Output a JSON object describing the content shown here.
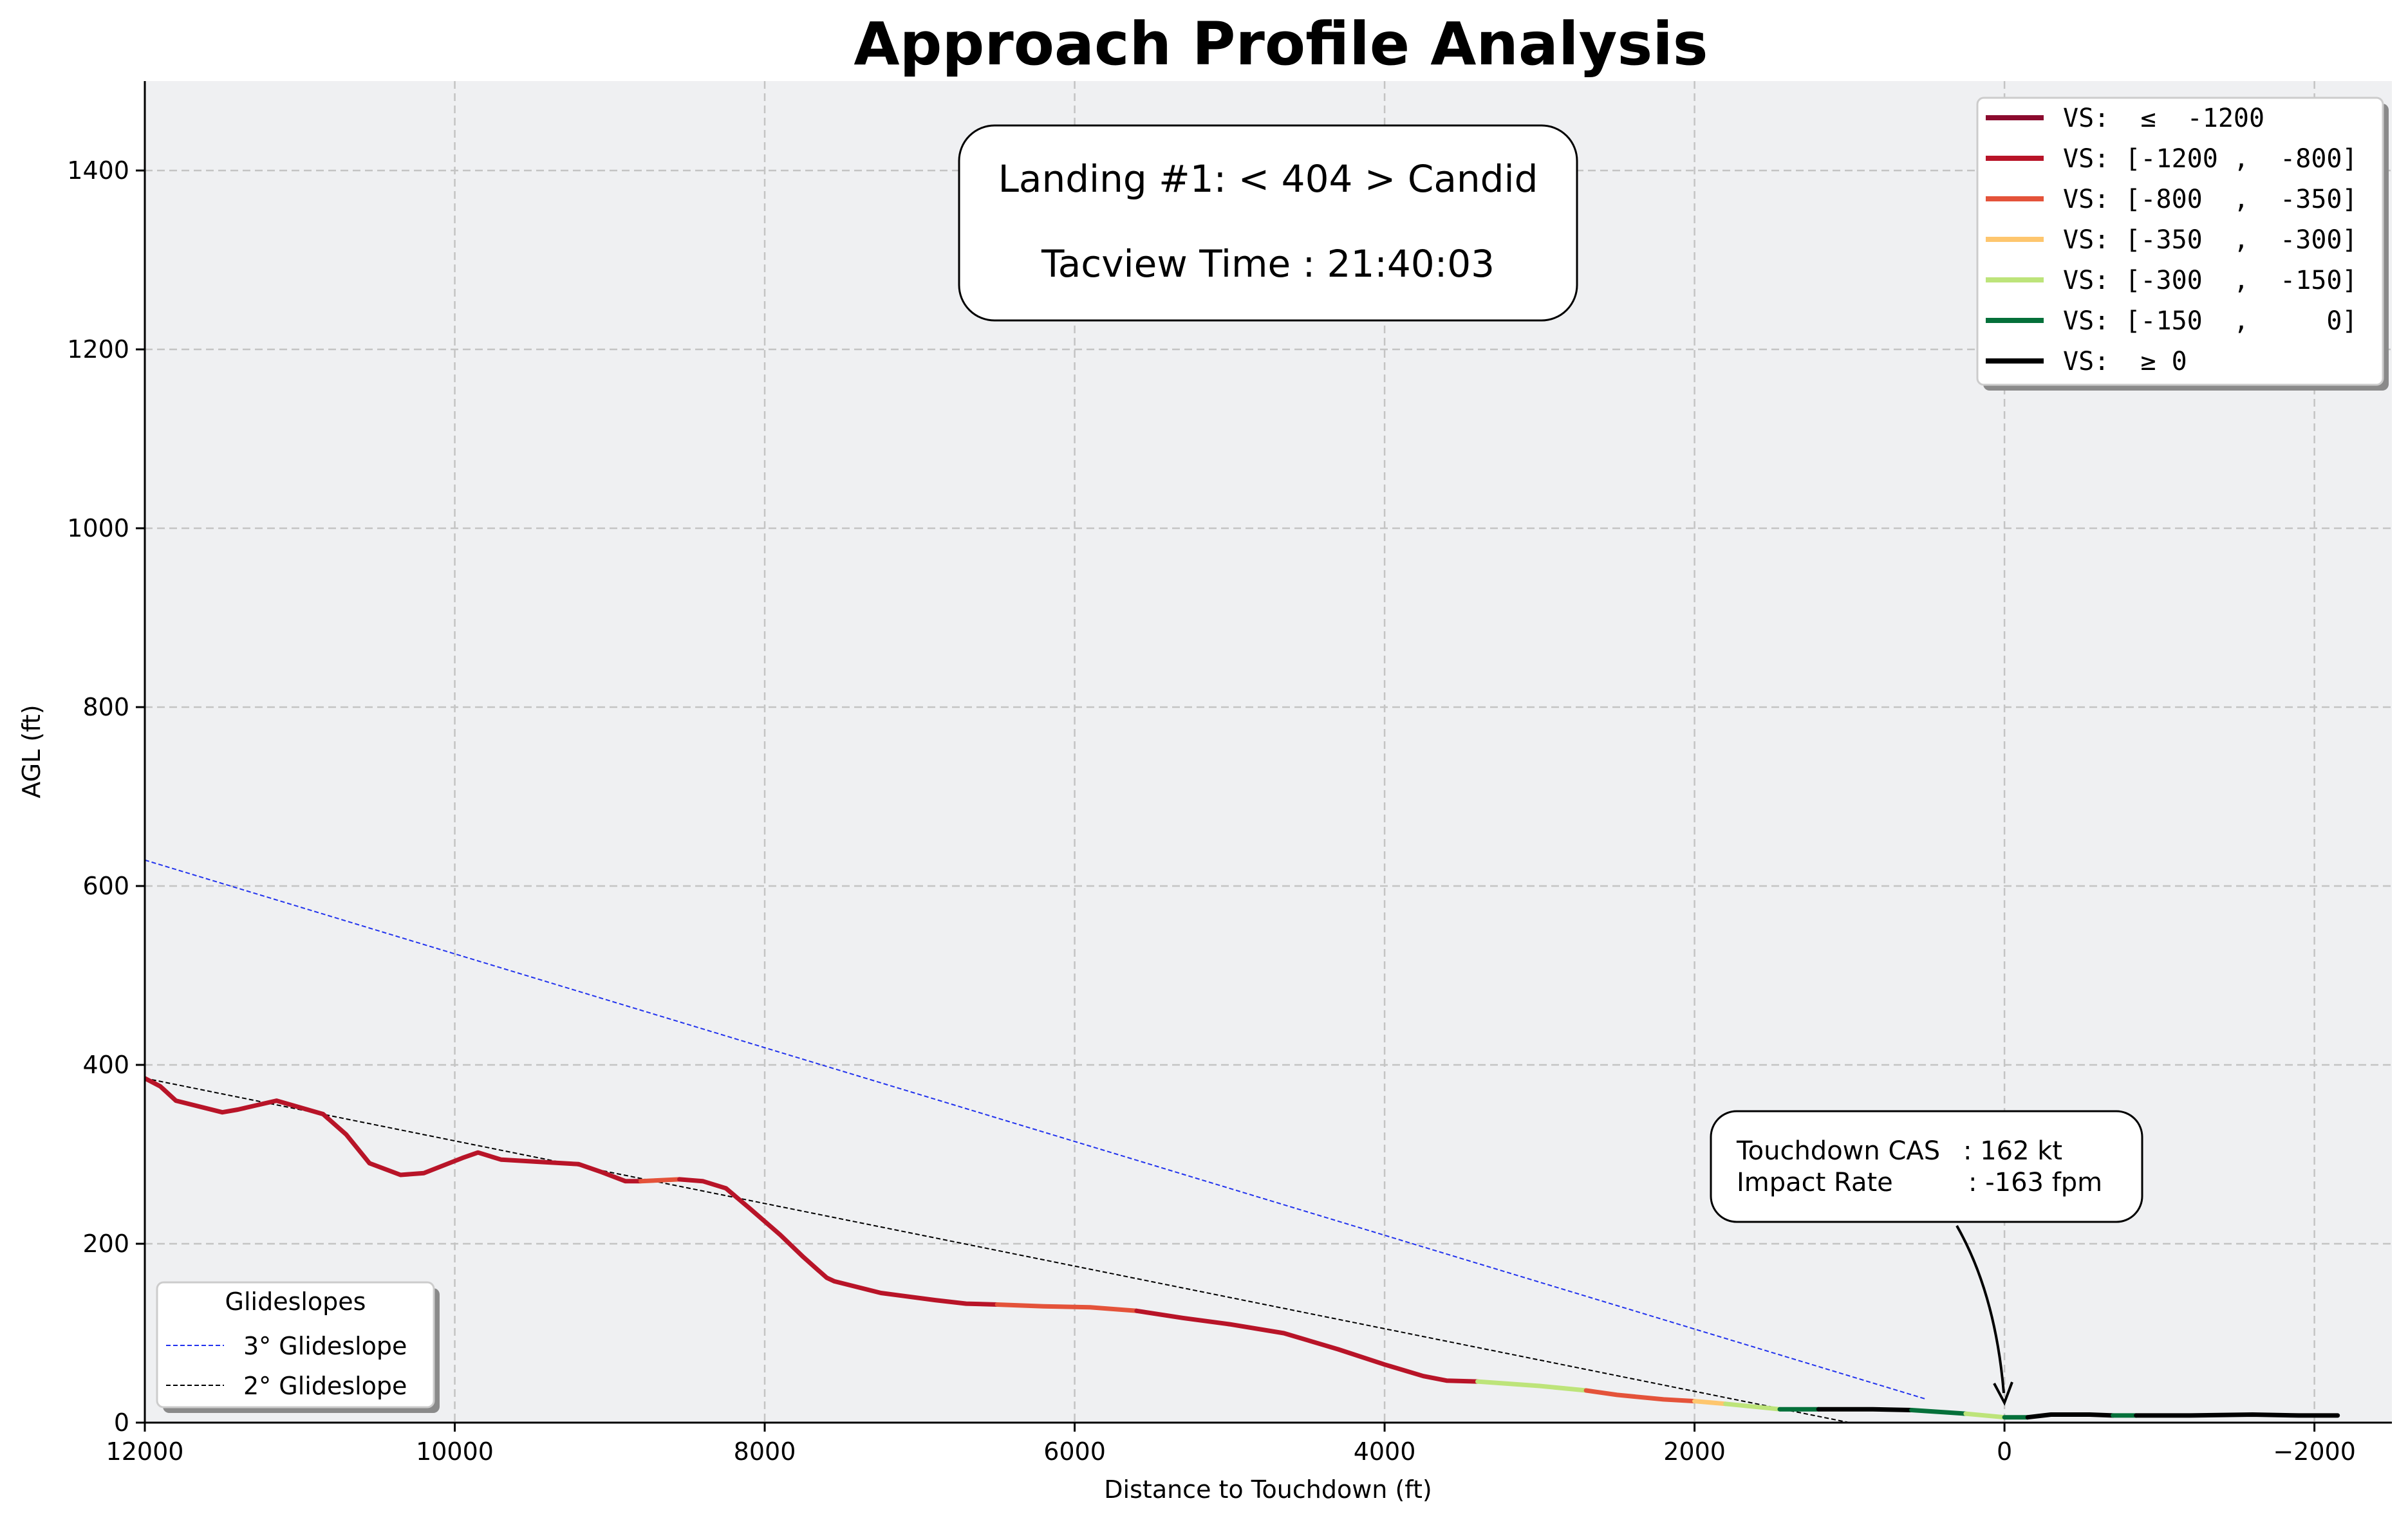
{
  "chart_data": {
    "type": "line",
    "title": "Approach Profile Analysis",
    "xlabel": "Distance to Touchdown (ft)",
    "ylabel": "AGL (ft)",
    "xlim": [
      12000,
      -2500
    ],
    "ylim": [
      0,
      1500
    ],
    "x_axis_inverted": true,
    "x_ticks": [
      12000,
      10000,
      8000,
      6000,
      4000,
      2000,
      0,
      -2000
    ],
    "x_tick_labels": [
      "12000",
      "10000",
      "8000",
      "6000",
      "4000",
      "2000",
      "0",
      "−2000"
    ],
    "y_ticks": [
      0,
      200,
      400,
      600,
      800,
      1000,
      1200,
      1400
    ],
    "y_tick_labels": [
      "0",
      "200",
      "400",
      "600",
      "800",
      "1000",
      "1200",
      "1400"
    ],
    "grid": true,
    "info_box": {
      "line1": "Landing #1: < 404 > Candid",
      "line2": "Tacview Time : 21:40:03"
    },
    "vs_legend": {
      "placement": "top-right",
      "entries": [
        {
          "label": "VS:  ≤  -1200",
          "color": "#8b0a2e"
        },
        {
          "label": "VS: [-1200 ,  -800]",
          "color": "#b81428"
        },
        {
          "label": "VS: [-800  ,  -350]",
          "color": "#e4533a"
        },
        {
          "label": "VS: [-350  ,  -300]",
          "color": "#fec66e"
        },
        {
          "label": "VS: [-300  ,  -150]",
          "color": "#bde47a"
        },
        {
          "label": "VS: [-150  ,     0]",
          "color": "#05703a"
        },
        {
          "label": "VS:  ≥ 0",
          "color": "#000000"
        }
      ]
    },
    "glideslope_legend": {
      "placement": "bottom-left",
      "title": "Glideslopes",
      "entries": [
        {
          "label": "3° Glideslope",
          "color": "#2233ee"
        },
        {
          "label": "2° Glideslope",
          "color": "#000000"
        }
      ]
    },
    "glideslopes": [
      {
        "name": "3° Glideslope",
        "color": "#2233ee",
        "points": [
          [
            12000,
            629
          ],
          [
            500,
            26
          ]
        ]
      },
      {
        "name": "2° Glideslope",
        "color": "#000000",
        "points": [
          [
            12000,
            385
          ],
          [
            1000,
            0
          ]
        ]
      }
    ],
    "annotation": {
      "line1_label": "Touchdown CAS",
      "line1_value": ": 162    kt",
      "line2_label": "Impact Rate",
      "line2_value": ": -163  fpm",
      "target": [
        0,
        22
      ],
      "text_anchor": [
        300,
        230
      ]
    },
    "flight_path": [
      {
        "color": "#b81428",
        "points": [
          [
            12000,
            385
          ],
          [
            11900,
            376
          ],
          [
            11800,
            360
          ],
          [
            11500,
            347
          ],
          [
            11400,
            350
          ],
          [
            11150,
            360
          ],
          [
            10850,
            345
          ],
          [
            10700,
            322
          ],
          [
            10550,
            290
          ],
          [
            10350,
            277
          ],
          [
            10200,
            279
          ],
          [
            9950,
            296
          ],
          [
            9850,
            302
          ],
          [
            9700,
            294
          ],
          [
            9400,
            291
          ],
          [
            9200,
            289
          ],
          [
            9050,
            280
          ],
          [
            8900,
            270
          ],
          [
            8800,
            270
          ]
        ]
      },
      {
        "color": "#e4533a",
        "points": [
          [
            8800,
            270
          ],
          [
            8550,
            272
          ]
        ]
      },
      {
        "color": "#b81428",
        "points": [
          [
            8550,
            272
          ],
          [
            8400,
            270
          ],
          [
            8250,
            262
          ],
          [
            8100,
            240
          ],
          [
            7900,
            210
          ],
          [
            7750,
            185
          ],
          [
            7600,
            162
          ],
          [
            7550,
            158
          ],
          [
            7250,
            145
          ],
          [
            6900,
            137
          ],
          [
            6700,
            133
          ],
          [
            6500,
            132
          ]
        ]
      },
      {
        "color": "#e4533a",
        "points": [
          [
            6500,
            132
          ],
          [
            6200,
            130
          ],
          [
            5900,
            129
          ],
          [
            5600,
            125
          ]
        ]
      },
      {
        "color": "#b81428",
        "points": [
          [
            5600,
            125
          ],
          [
            5300,
            117
          ],
          [
            5000,
            110
          ],
          [
            4650,
            100
          ],
          [
            4300,
            82
          ],
          [
            4000,
            65
          ],
          [
            3750,
            52
          ],
          [
            3600,
            47
          ],
          [
            3400,
            46
          ]
        ]
      },
      {
        "color": "#bde47a",
        "points": [
          [
            3400,
            46
          ],
          [
            3000,
            41
          ],
          [
            2700,
            36
          ]
        ]
      },
      {
        "color": "#e4533a",
        "points": [
          [
            2700,
            36
          ],
          [
            2500,
            31
          ],
          [
            2200,
            26
          ],
          [
            2000,
            24
          ]
        ]
      },
      {
        "color": "#fec66e",
        "points": [
          [
            2000,
            24
          ],
          [
            1800,
            21
          ]
        ]
      },
      {
        "color": "#bde47a",
        "points": [
          [
            1800,
            21
          ],
          [
            1450,
            15
          ]
        ]
      },
      {
        "color": "#05703a",
        "points": [
          [
            1450,
            15
          ],
          [
            1200,
            15
          ]
        ]
      },
      {
        "color": "#000000",
        "points": [
          [
            1200,
            15
          ],
          [
            850,
            15
          ],
          [
            600,
            14
          ]
        ]
      },
      {
        "color": "#05703a",
        "points": [
          [
            600,
            14
          ],
          [
            250,
            10
          ]
        ]
      },
      {
        "color": "#bde47a",
        "points": [
          [
            250,
            10
          ],
          [
            0,
            6
          ]
        ]
      },
      {
        "color": "#05703a",
        "points": [
          [
            0,
            6
          ],
          [
            -150,
            6
          ]
        ]
      },
      {
        "color": "#000000",
        "points": [
          [
            -150,
            6
          ],
          [
            -300,
            9
          ],
          [
            -550,
            9
          ],
          [
            -700,
            8
          ]
        ]
      },
      {
        "color": "#05703a",
        "points": [
          [
            -700,
            8
          ],
          [
            -850,
            8
          ]
        ]
      },
      {
        "color": "#000000",
        "points": [
          [
            -850,
            8
          ],
          [
            -1200,
            8
          ],
          [
            -1600,
            9
          ],
          [
            -1900,
            8
          ],
          [
            -2150,
            8
          ]
        ]
      }
    ]
  }
}
